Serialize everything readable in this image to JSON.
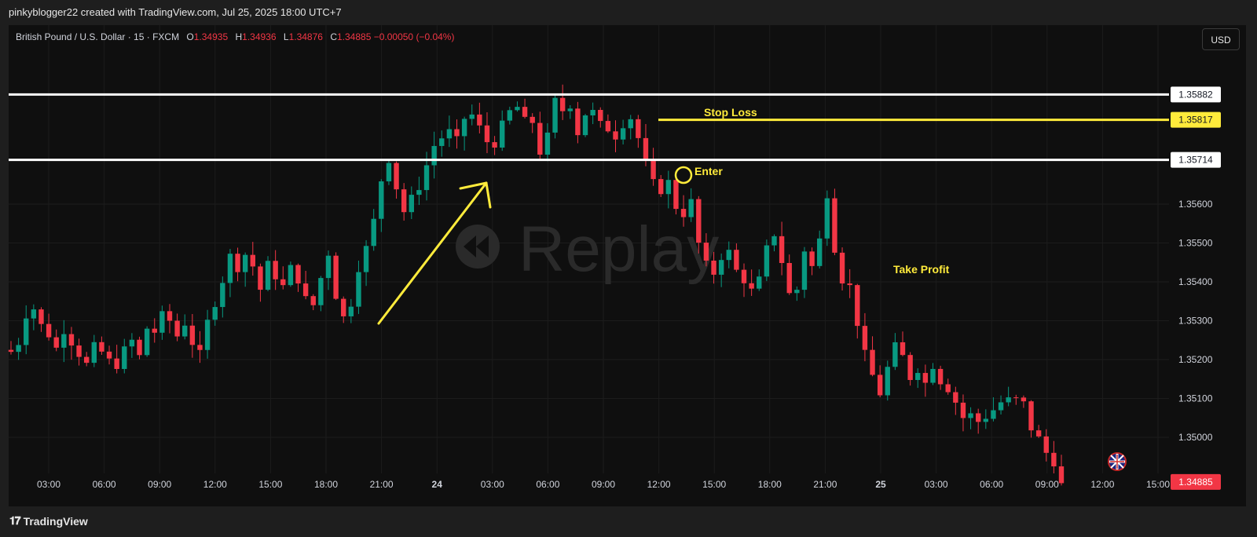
{
  "header": {
    "attribution": "pinkyblogger22 created with TradingView.com, Jul 25, 2025 18:00 UTC+7"
  },
  "legend": {
    "symbol": "British Pound / U.S. Dollar · 15 · FXCM",
    "open_label": "O",
    "open": "1.34935",
    "high_label": "H",
    "high": "1.34936",
    "low_label": "L",
    "low": "1.34876",
    "close_label": "C",
    "close": "1.34885",
    "change": "−0.00050 (−0.04%)"
  },
  "currency_button": "USD",
  "watermark": "Replay",
  "footer": {
    "brand": "TradingView"
  },
  "annotations": {
    "stop_loss": "Stop Loss",
    "enter": "Enter",
    "take_profit": "Take Profit"
  },
  "price_badges": {
    "resistance_upper": "1.35882",
    "stop_loss": "1.35817",
    "resistance_lower": "1.35714",
    "last_price": "1.34885"
  },
  "colors": {
    "up": "#089981",
    "down": "#f23645",
    "annotation": "#ffeb3b",
    "level": "#ffffff",
    "background": "#0f0f0f"
  },
  "chart_data": {
    "type": "candlestick",
    "y_axis_ticks": [
      "1.35600",
      "1.35500",
      "1.35400",
      "1.35300",
      "1.35200",
      "1.35100",
      "1.35000"
    ],
    "x_axis_ticks": [
      "03:00",
      "06:00",
      "09:00",
      "12:00",
      "15:00",
      "18:00",
      "21:00",
      "24",
      "03:00",
      "06:00",
      "09:00",
      "12:00",
      "15:00",
      "18:00",
      "21:00",
      "25",
      "03:00",
      "06:00",
      "09:00",
      "12:00",
      "15:00"
    ],
    "bold_ticks": [
      "24",
      "25"
    ],
    "ylim": [
      1.3488,
      1.3595
    ],
    "levels": [
      1.35882,
      1.35817,
      1.35714
    ],
    "path": [
      1.3522,
      1.3524,
      1.3531,
      1.3533,
      1.3529,
      1.3526,
      1.3523,
      1.3527,
      1.3524,
      1.3521,
      1.3519,
      1.3524,
      1.3522,
      1.352,
      1.3518,
      1.3523,
      1.3525,
      1.3521,
      1.3528,
      1.3527,
      1.3532,
      1.353,
      1.3526,
      1.3529,
      1.3524,
      1.3522,
      1.353,
      1.3534,
      1.354,
      1.3547,
      1.3543,
      1.3547,
      1.3544,
      1.3538,
      1.3545,
      1.3541,
      1.3539,
      1.3544,
      1.354,
      1.3536,
      1.3534,
      1.3541,
      1.3547,
      1.3536,
      1.3531,
      1.3534,
      1.3543,
      1.3549,
      1.3556,
      1.3566,
      1.3571,
      1.3564,
      1.3558,
      1.3562,
      1.3564,
      1.357,
      1.3575,
      1.3577,
      1.3579,
      1.3577,
      1.3582,
      1.3583,
      1.358,
      1.3576,
      1.3575,
      1.3581,
      1.3584,
      1.3585,
      1.3582,
      1.3581,
      1.3573,
      1.3578,
      1.3587,
      1.3584,
      1.3585,
      1.3578,
      1.3583,
      1.3584,
      1.3581,
      1.3579,
      1.3577,
      1.358,
      1.3582,
      1.3577,
      1.3571,
      1.3566,
      1.3563,
      1.3566,
      1.3559,
      1.3557,
      1.3561,
      1.355,
      1.3545,
      1.3542,
      1.3546,
      1.3548,
      1.3543,
      1.354,
      1.3538,
      1.3541,
      1.3549,
      1.3552,
      1.3545,
      1.3537,
      1.3538,
      1.3548,
      1.3544,
      1.3551,
      1.3562,
      1.3548,
      1.354,
      1.3539,
      1.3529,
      1.3522,
      1.3516,
      1.3511,
      1.3518,
      1.3524,
      1.3521,
      1.3515,
      1.3517,
      1.3514,
      1.3518,
      1.3514,
      1.3512,
      1.3509,
      1.3505,
      1.3506,
      1.3504,
      1.3505,
      1.3507,
      1.3509,
      1.351,
      1.351,
      1.3509,
      1.3502,
      1.35,
      1.3496,
      1.3493,
      1.3488
    ]
  }
}
